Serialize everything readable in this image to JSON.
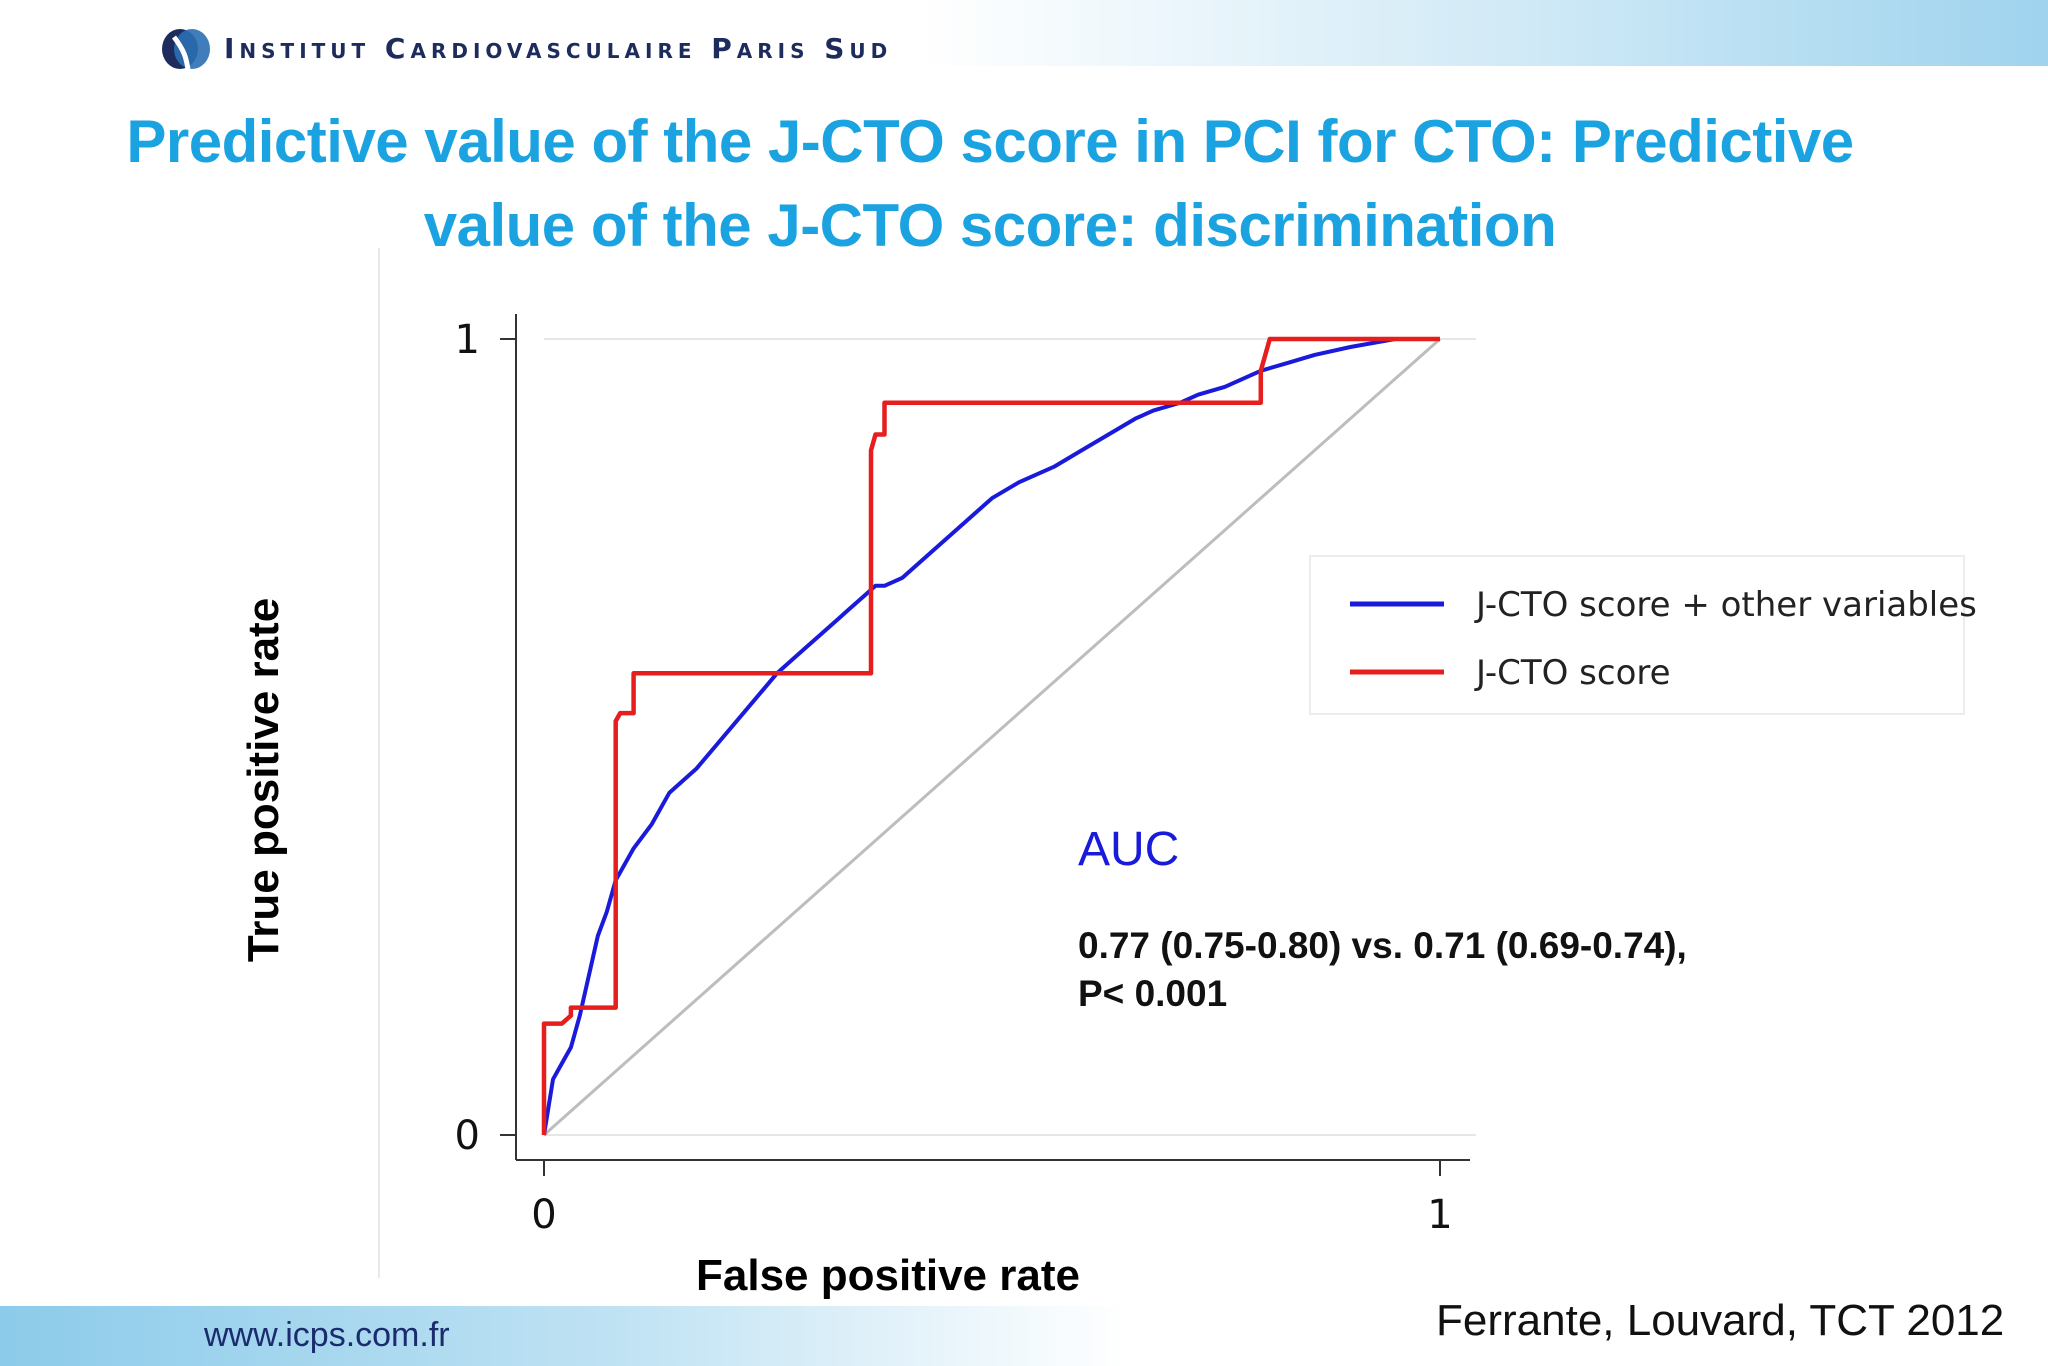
{
  "header": {
    "institute_name": "Institut Cardiovasculaire Paris Sud",
    "logo_icon": "heart-logo-icon"
  },
  "slide": {
    "title": "Predictive value of the J-CTO score in PCI for CTO: Predictive value of the J-CTO score: discrimination"
  },
  "chart_data": {
    "type": "line",
    "title": "",
    "xlabel": "False positive rate",
    "ylabel": "True positive rate",
    "xlim": [
      0,
      1
    ],
    "ylim": [
      0,
      1
    ],
    "x_ticks": [
      "0",
      "1"
    ],
    "y_ticks": [
      "0",
      "1"
    ],
    "grid": false,
    "legend_position": "right",
    "reference_line": {
      "x": [
        0,
        1
      ],
      "y": [
        0,
        1
      ],
      "color": "#bdbdbd"
    },
    "series": [
      {
        "name": "J-CTO score + other variables",
        "color": "#1a1adb",
        "x": [
          0,
          0.01,
          0.02,
          0.03,
          0.04,
          0.05,
          0.06,
          0.07,
          0.08,
          0.1,
          0.12,
          0.14,
          0.17,
          0.2,
          0.23,
          0.26,
          0.29,
          0.31,
          0.33,
          0.34,
          0.36,
          0.37,
          0.38,
          0.4,
          0.43,
          0.47,
          0.5,
          0.53,
          0.57,
          0.6,
          0.63,
          0.66,
          0.68,
          0.71,
          0.73,
          0.76,
          0.8,
          0.83,
          0.86,
          0.9,
          0.95,
          1.0
        ],
        "y": [
          0,
          0.07,
          0.09,
          0.11,
          0.15,
          0.2,
          0.25,
          0.28,
          0.32,
          0.36,
          0.39,
          0.43,
          0.46,
          0.5,
          0.54,
          0.58,
          0.61,
          0.63,
          0.65,
          0.66,
          0.68,
          0.69,
          0.69,
          0.7,
          0.73,
          0.77,
          0.8,
          0.82,
          0.84,
          0.86,
          0.88,
          0.9,
          0.91,
          0.92,
          0.93,
          0.94,
          0.96,
          0.97,
          0.98,
          0.99,
          1.0,
          1.0
        ]
      },
      {
        "name": "J-CTO score",
        "color": "#e61e1e",
        "x": [
          0,
          0,
          0.02,
          0.03,
          0.03,
          0.08,
          0.08,
          0.085,
          0.1,
          0.1,
          0.365,
          0.365,
          0.37,
          0.38,
          0.38,
          0.8,
          0.8,
          0.81,
          1.0
        ],
        "y": [
          0,
          0.14,
          0.14,
          0.15,
          0.16,
          0.16,
          0.52,
          0.53,
          0.53,
          0.58,
          0.58,
          0.86,
          0.88,
          0.88,
          0.92,
          0.92,
          0.96,
          1.0,
          1.0
        ]
      }
    ]
  },
  "annotation": {
    "auc_label": "AUC",
    "auc_line1": "0.77 (0.75-0.80) vs. 0.71 (0.69-0.74),",
    "auc_line2": "P< 0.001"
  },
  "footer": {
    "citation": "Ferrante, Louvard, TCT 2012",
    "url": "www.icps.com.fr"
  }
}
